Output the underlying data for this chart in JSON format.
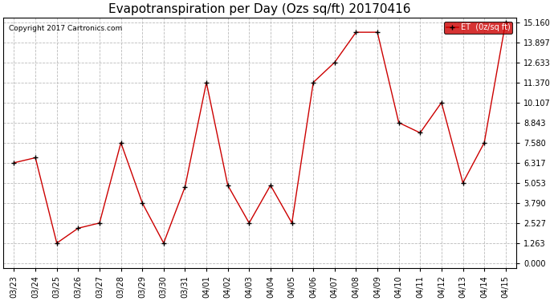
{
  "title": "Evapotranspiration per Day (Ozs sq/ft) 20170416",
  "copyright": "Copyright 2017 Cartronics.com",
  "legend_label": "ET  (0z/sq ft)",
  "dates": [
    "03/23",
    "03/24",
    "03/25",
    "03/26",
    "03/27",
    "03/28",
    "03/29",
    "03/30",
    "03/31",
    "04/01",
    "04/02",
    "04/03",
    "04/04",
    "04/05",
    "04/06",
    "04/07",
    "04/08",
    "04/09",
    "04/10",
    "04/11",
    "04/12",
    "04/13",
    "04/14",
    "04/15"
  ],
  "values": [
    6.317,
    6.634,
    1.263,
    2.2,
    2.527,
    7.58,
    3.79,
    1.263,
    4.8,
    11.37,
    4.9,
    2.527,
    4.9,
    2.527,
    11.37,
    12.633,
    14.529,
    14.529,
    8.843,
    8.2,
    10.107,
    5.053,
    7.58,
    15.16
  ],
  "yticks": [
    0.0,
    1.263,
    2.527,
    3.79,
    5.053,
    6.317,
    7.58,
    8.843,
    10.107,
    11.37,
    12.633,
    13.897,
    15.16
  ],
  "line_color": "#cc0000",
  "marker": "+",
  "bg_color": "#ffffff",
  "grid_color": "#bbbbbb",
  "title_fontsize": 11,
  "copyright_fontsize": 6.5,
  "tick_fontsize": 7,
  "legend_bg": "#cc0000",
  "legend_text_color": "#ffffff",
  "ymin": 0.0,
  "ymax": 15.16
}
